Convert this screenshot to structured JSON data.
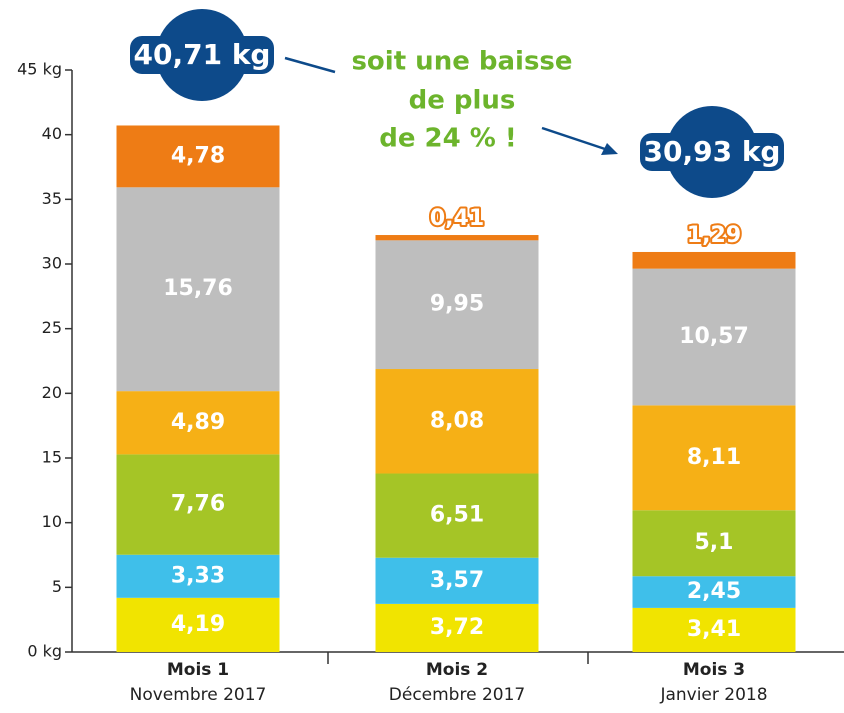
{
  "chart_data": {
    "type": "stacked_bar",
    "categories": [
      "Mois 1",
      "Mois 2",
      "Mois 3"
    ],
    "sublabels": [
      "Novembre 2017",
      "Décembre 2017",
      "Janvier 2018"
    ],
    "series": [
      {
        "color": "#f1e400",
        "values": [
          4.19,
          3.72,
          3.41
        ],
        "value_labels": [
          "4,19",
          "3,72",
          "3,41"
        ]
      },
      {
        "color": "#3fbfea",
        "values": [
          3.33,
          3.57,
          2.45
        ],
        "value_labels": [
          "3,33",
          "3,57",
          "2,45"
        ]
      },
      {
        "color": "#a5c526",
        "values": [
          7.76,
          6.51,
          5.1
        ],
        "value_labels": [
          "7,76",
          "6,51",
          "5,1"
        ]
      },
      {
        "color": "#f6b016",
        "values": [
          4.89,
          8.08,
          8.11
        ],
        "value_labels": [
          "4,89",
          "8,08",
          "8,11"
        ]
      },
      {
        "color": "#bebebe",
        "values": [
          15.76,
          9.95,
          10.57
        ],
        "value_labels": [
          "15,76",
          "9,95",
          "10,57"
        ]
      },
      {
        "color": "#ee7c15",
        "values": [
          4.78,
          0.41,
          1.29
        ],
        "value_labels": [
          "4,78",
          "0,41",
          "1,29"
        ]
      }
    ],
    "totals": [
      {
        "value": 40.71,
        "label": "40,71 kg"
      },
      null,
      {
        "value": 30.93,
        "label": "30,93 kg"
      }
    ],
    "annotation": [
      "soit une baisse",
      "de plus",
      "de 24 % !"
    ],
    "ylim": [
      0,
      45
    ],
    "yticks": [
      {
        "value": 0,
        "label": "0 kg"
      },
      5,
      10,
      15,
      20,
      25,
      30,
      35,
      40,
      {
        "value": 45,
        "label": "45 kg"
      }
    ]
  }
}
